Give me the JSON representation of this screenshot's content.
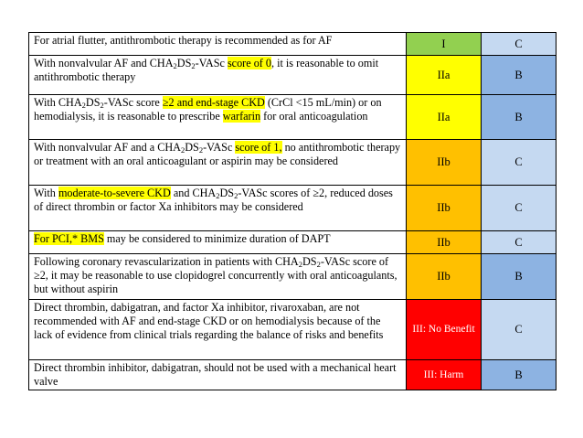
{
  "table": {
    "rows": [
      {
        "parts": [
          {
            "t": "For atrial flutter, antithrombotic therapy is recommended as for AF"
          }
        ],
        "class_label": "I",
        "class_color": "#92d050",
        "class_text_color": "#000000",
        "loe": "C",
        "loe_color": "#c5d9f1"
      },
      {
        "parts": [
          {
            "t": "With nonvalvular AF and CHA"
          },
          {
            "t": "2",
            "sub": true
          },
          {
            "t": "DS"
          },
          {
            "t": "2",
            "sub": true
          },
          {
            "t": "-VASc "
          },
          {
            "t": "score of 0",
            "hl": true
          },
          {
            "t": ", it is reasonable to omit antithrombotic therapy"
          }
        ],
        "class_label": "IIa",
        "class_color": "#ffff00",
        "class_text_color": "#000000",
        "loe": "B",
        "loe_color": "#8db3e2"
      },
      {
        "parts": [
          {
            "t": "With CHA"
          },
          {
            "t": "2",
            "sub": true
          },
          {
            "t": "DS"
          },
          {
            "t": "2",
            "sub": true
          },
          {
            "t": "-VASc score "
          },
          {
            "t": "≥2 and end-stage CKD",
            "hl": true
          },
          {
            "t": " (CrCl <15 mL/min) or on hemodialysis, it is reasonable to prescribe "
          },
          {
            "t": "warfarin",
            "hl": true
          },
          {
            "t": " for oral anticoagulation"
          }
        ],
        "class_label": "IIa",
        "class_color": "#ffff00",
        "class_text_color": "#000000",
        "loe": "B",
        "loe_color": "#8db3e2"
      },
      {
        "parts": [
          {
            "t": "With nonvalvular AF and a CHA"
          },
          {
            "t": "2",
            "sub": true
          },
          {
            "t": "DS"
          },
          {
            "t": "2",
            "sub": true
          },
          {
            "t": "-VASc "
          },
          {
            "t": "score of 1,",
            "hl": true
          },
          {
            "t": " no antithrombotic therapy or treatment with an oral anticoagulant or aspirin may be considered"
          }
        ],
        "class_label": "IIb",
        "class_color": "#ffc000",
        "class_text_color": "#000000",
        "loe": "C",
        "loe_color": "#c5d9f1"
      },
      {
        "parts": [
          {
            "t": "With "
          },
          {
            "t": "moderate-to-severe CKD",
            "hl": true
          },
          {
            "t": " and CHA"
          },
          {
            "t": "2",
            "sub": true
          },
          {
            "t": "DS"
          },
          {
            "t": "2",
            "sub": true
          },
          {
            "t": "-VASc scores of ≥2, reduced doses of direct thrombin or factor Xa inhibitors may be considered"
          }
        ],
        "class_label": "IIb",
        "class_color": "#ffc000",
        "class_text_color": "#000000",
        "loe": "C",
        "loe_color": "#c5d9f1"
      },
      {
        "parts": [
          {
            "t": "For PCI,* BMS",
            "hl": true
          },
          {
            "t": " may be considered to minimize duration of DAPT"
          }
        ],
        "class_label": "IIb",
        "class_color": "#ffc000",
        "class_text_color": "#000000",
        "loe": "C",
        "loe_color": "#c5d9f1"
      },
      {
        "parts": [
          {
            "t": "Following coronary revascularization in patients with CHA"
          },
          {
            "t": "2",
            "sub": true
          },
          {
            "t": "DS"
          },
          {
            "t": "2",
            "sub": true
          },
          {
            "t": "-VASc score of ≥2, it may be reasonable to use clopidogrel concurrently with oral anticoagulants, but without aspirin"
          }
        ],
        "class_label": "IIb",
        "class_color": "#ffc000",
        "class_text_color": "#000000",
        "loe": "B",
        "loe_color": "#8db3e2"
      },
      {
        "parts": [
          {
            "t": "Direct thrombin, dabigatran, and factor Xa inhibitor, rivaroxaban, are not recommended with AF and end-stage CKD or on hemodialysis because of the lack of evidence from clinical trials regarding the balance of risks and benefits"
          }
        ],
        "class_label": "III: No Benefit",
        "class_color": "#ff0000",
        "class_text_color": "#ffffff",
        "loe": "C",
        "loe_color": "#c5d9f1"
      },
      {
        "parts": [
          {
            "t": "Direct thrombin inhibitor, dabigatran, should not be used with a mechanical heart valve"
          }
        ],
        "class_label": "III: Harm",
        "class_color": "#ff0000",
        "class_text_color": "#ffffff",
        "loe": "B",
        "loe_color": "#8db3e2"
      }
    ]
  }
}
